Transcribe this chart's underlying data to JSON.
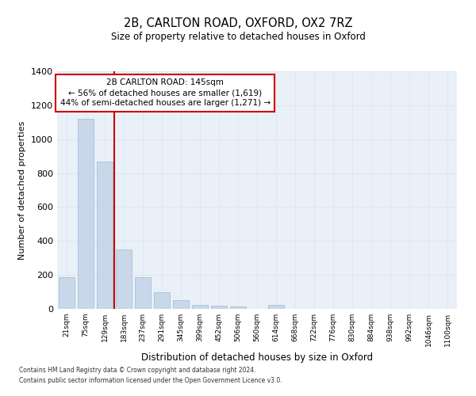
{
  "title": "2B, CARLTON ROAD, OXFORD, OX2 7RZ",
  "subtitle": "Size of property relative to detached houses in Oxford",
  "xlabel": "Distribution of detached houses by size in Oxford",
  "ylabel": "Number of detached properties",
  "bar_color": "#c8d8ea",
  "bar_edge_color": "#a0b8cc",
  "categories": [
    "21sqm",
    "75sqm",
    "129sqm",
    "183sqm",
    "237sqm",
    "291sqm",
    "345sqm",
    "399sqm",
    "452sqm",
    "506sqm",
    "560sqm",
    "614sqm",
    "668sqm",
    "722sqm",
    "776sqm",
    "830sqm",
    "884sqm",
    "938sqm",
    "992sqm",
    "1046sqm",
    "1100sqm"
  ],
  "values": [
    185,
    1120,
    870,
    350,
    188,
    100,
    50,
    25,
    20,
    15,
    0,
    25,
    0,
    0,
    0,
    0,
    0,
    0,
    0,
    0,
    0
  ],
  "annotation_text": "2B CARLTON ROAD: 145sqm\n← 56% of detached houses are smaller (1,619)\n44% of semi-detached houses are larger (1,271) →",
  "annotation_box_color": "#ffffff",
  "annotation_box_edge": "#cc0000",
  "vline_color": "#cc0000",
  "ylim": [
    0,
    1400
  ],
  "yticks": [
    0,
    200,
    400,
    600,
    800,
    1000,
    1200,
    1400
  ],
  "grid_color": "#dde8f0",
  "background_color": "#eaf0f8",
  "footer1": "Contains HM Land Registry data © Crown copyright and database right 2024.",
  "footer2": "Contains public sector information licensed under the Open Government Licence v3.0."
}
